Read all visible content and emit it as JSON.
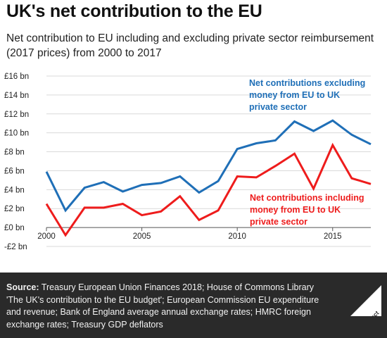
{
  "header": {
    "title": "UK's net contribution to the EU",
    "subtitle": "Net contribution to EU including and excluding private sector reimbursement (2017 prices) from 2000 to 2017"
  },
  "footer": {
    "source_label": "Source:",
    "source_text": "Treasury European Union Finances 2018; House of Commons Library 'The UK's contribution to the EU budget'; European Commission EU expenditure and revenue; Bank of England average annual exchange rates; HMRC foreign exchange rates; Treasury GDP deflators",
    "logo_text": "Full Fact"
  },
  "colors": {
    "excluding": "#1f6fb7",
    "including": "#ee1c1c",
    "footer_bg": "#2a2a2a"
  },
  "chart_data": {
    "type": "line",
    "title": "UK's net contribution to the EU",
    "xlabel": "",
    "ylabel": "",
    "x": [
      2000,
      2001,
      2002,
      2003,
      2004,
      2005,
      2006,
      2007,
      2008,
      2009,
      2010,
      2011,
      2012,
      2013,
      2014,
      2015,
      2016,
      2017
    ],
    "xlim": [
      2000,
      2017
    ],
    "ylim": [
      -2,
      16
    ],
    "x_ticks": [
      {
        "value": 2000,
        "label": "2000"
      },
      {
        "value": 2005,
        "label": "2005"
      },
      {
        "value": 2010,
        "label": "2010"
      },
      {
        "value": 2015,
        "label": "2015"
      }
    ],
    "y_ticks": [
      {
        "value": -2,
        "label": "-£2 bn"
      },
      {
        "value": 0,
        "label": "£0 bn"
      },
      {
        "value": 2,
        "label": "£2 bn"
      },
      {
        "value": 4,
        "label": "£4 bn"
      },
      {
        "value": 6,
        "label": "£6 bn"
      },
      {
        "value": 8,
        "label": "£8 bn"
      },
      {
        "value": 10,
        "label": "£10 bn"
      },
      {
        "value": 12,
        "label": "£12 bn"
      },
      {
        "value": 14,
        "label": "£14 bn"
      },
      {
        "value": 16,
        "label": "£16 bn"
      }
    ],
    "grid": true,
    "series": [
      {
        "name": "Net contributions excluding money from EU to UK private sector",
        "label_lines": [
          "Net contributions excluding",
          "money from EU to UK",
          "private sector"
        ],
        "color": "#1f6fb7",
        "values": [
          5.9,
          1.8,
          4.2,
          4.8,
          3.8,
          4.5,
          4.7,
          5.4,
          3.7,
          4.9,
          8.3,
          8.9,
          9.2,
          11.2,
          10.2,
          11.3,
          9.8,
          8.8
        ]
      },
      {
        "name": "Net contributions including money from EU to UK private sector",
        "label_lines": [
          "Net contributions including",
          "money from EU to UK",
          "private sector"
        ],
        "color": "#ee1c1c",
        "values": [
          2.5,
          -0.8,
          2.1,
          2.1,
          2.5,
          1.3,
          1.7,
          3.3,
          0.8,
          1.8,
          5.4,
          5.3,
          6.5,
          7.8,
          4.1,
          8.7,
          5.2,
          4.6
        ]
      }
    ]
  }
}
